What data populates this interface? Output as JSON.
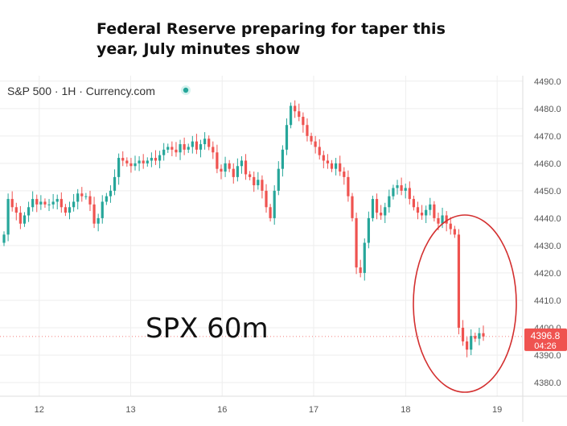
{
  "headline": {
    "line1": "Federal Reserve preparing for taper this",
    "line2": "year, July minutes show"
  },
  "chart_data": {
    "type": "candlestick",
    "symbol_label": "S&P 500 · 1H · Currency.com",
    "annotation": "SPX 60m",
    "last_price": "4396.8",
    "countdown": "04:26",
    "ylim": [
      4375,
      4492
    ],
    "yticks": [
      4380,
      4390,
      4400,
      4410,
      4420,
      4430,
      4440,
      4450,
      4460,
      4470,
      4480,
      4490
    ],
    "ytick_labels": [
      "4380.0",
      "4390.0",
      "4400.0",
      "4410.0",
      "4420.0",
      "4430.0",
      "4440.0",
      "4450.0",
      "4460.0",
      "4470.0",
      "4480.0",
      "4490.0"
    ],
    "xlim": [
      0,
      100
    ],
    "xticks": [
      {
        "label": "12",
        "pos": 7.5
      },
      {
        "label": "13",
        "pos": 25.0
      },
      {
        "label": "16",
        "pos": 42.5
      },
      {
        "label": "17",
        "pos": 60.0
      },
      {
        "label": "18",
        "pos": 77.6
      },
      {
        "label": "19",
        "pos": 95.1
      }
    ],
    "grid": true,
    "colors": {
      "up": "#26a69a",
      "down": "#ef5350",
      "circle": "#d32f2f",
      "grid": "#eeeeee",
      "price_tag": "#ef5350"
    },
    "candles_close": [
      4434,
      4447,
      4444,
      4442,
      4438,
      4441,
      4444,
      4447,
      4445,
      4446,
      4445,
      4445,
      4446,
      4447,
      4444,
      4442,
      4444,
      4446,
      4449,
      4448,
      4448,
      4445,
      4438,
      4440,
      4446,
      4448,
      4450,
      4455,
      4462,
      4461,
      4460,
      4459,
      4460,
      4461,
      4460,
      4461,
      4462,
      4461,
      4463,
      4465,
      4466,
      4465,
      4464,
      4467,
      4465,
      4466,
      4468,
      4465,
      4467,
      4469,
      4466,
      4464,
      4458,
      4457,
      4460,
      4458,
      4455,
      4459,
      4461,
      4456,
      4455,
      4452,
      4454,
      4450,
      4444,
      4440,
      4450,
      4458,
      4465,
      4474,
      4481,
      4479,
      4477,
      4474,
      4470,
      4468,
      4466,
      4463,
      4461,
      4460,
      4458,
      4460,
      4457,
      4455,
      4448,
      4440,
      4422,
      4420,
      4431,
      4440,
      4447,
      4442,
      4441,
      4444,
      4448,
      4451,
      4452,
      4450,
      4451,
      4447,
      4444,
      4442,
      4441,
      4443,
      4445,
      4440,
      4438,
      4441,
      4438,
      4436,
      4434,
      4400,
      4395,
      4392,
      4397,
      4396,
      4398,
      4396.8
    ]
  }
}
